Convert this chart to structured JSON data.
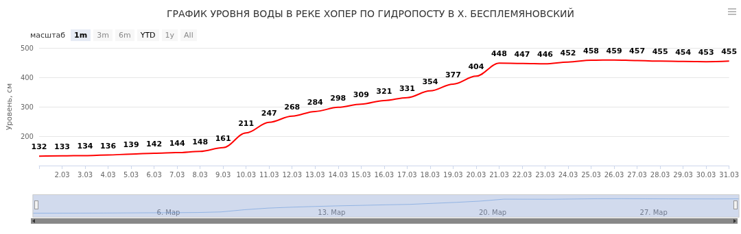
{
  "chart_data": {
    "type": "line",
    "title": "ГРАФИК УРОВНЯ ВОДЫ В РЕКЕ ХОПЕР ПО ГИДРОПОСТУ В Х. БЕСПЛЕМЯНОВСКИЙ",
    "ylabel": "Уровень, см",
    "categories": [
      null,
      "2.03",
      "3.03",
      "4.03",
      "5.03",
      "6.03",
      "7.03",
      "8.03",
      "9.03",
      "10.03",
      "11.03",
      "12.03",
      "13.03",
      "14.03",
      "15.03",
      "16.03",
      "17.03",
      "18.03",
      "19.03",
      "20.03",
      "21.03",
      "22.03",
      "23.03",
      "24.03",
      "25.03",
      "26.03",
      "27.03",
      "28.03",
      "29.03",
      "30.03",
      "31.03"
    ],
    "series": [
      {
        "color": "#ff0000",
        "values": [
          132,
          133,
          134,
          136,
          139,
          142,
          144,
          148,
          161,
          211,
          247,
          268,
          284,
          298,
          309,
          321,
          331,
          354,
          377,
          404,
          448,
          447,
          446,
          452,
          458,
          459,
          457,
          455,
          454,
          453,
          455
        ]
      }
    ],
    "ylim": [
      100,
      500
    ],
    "yticks": [
      200,
      300,
      400,
      500
    ],
    "grid": "y",
    "data_labels": true,
    "annotations": [
      "масштаб",
      "1m",
      "3m",
      "6m",
      "YTD",
      "1y",
      "All",
      "6. Мар",
      "13. Мар",
      "20. Мар",
      "27. Мар"
    ]
  }
}
